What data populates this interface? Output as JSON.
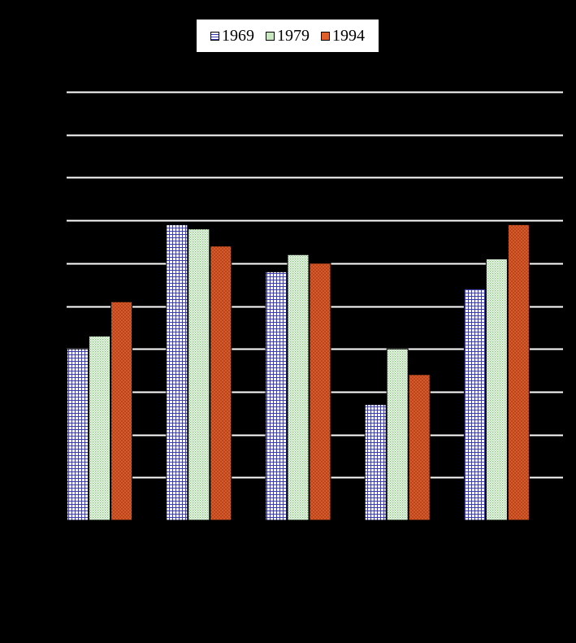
{
  "chart_data": {
    "type": "bar",
    "title": "",
    "xlabel": "",
    "ylabel": "",
    "categories": [
      "",
      "",
      "",
      "",
      ""
    ],
    "ylim": [
      0,
      100
    ],
    "grid": true,
    "legend_position": "top-center",
    "series": [
      {
        "name": "1969",
        "color": "#3b3bb0",
        "pattern": "grid",
        "values": [
          40,
          69,
          58,
          27,
          54
        ]
      },
      {
        "name": "1979",
        "color": "#7cc46e",
        "pattern": "dots",
        "values": [
          43,
          68,
          62,
          40,
          61
        ]
      },
      {
        "name": "1994",
        "color": "#e0602c",
        "pattern": "hatch",
        "values": [
          51,
          64,
          60,
          34,
          69
        ]
      }
    ]
  },
  "colors": {
    "background": "#000000",
    "gridline": "#ffffff",
    "legend_background": "#ffffff"
  }
}
